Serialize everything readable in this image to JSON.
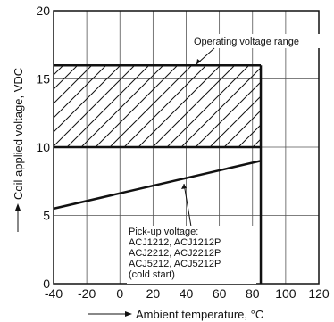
{
  "chart_data": {
    "type": "line",
    "xlabel": "Ambient temperature, °C",
    "ylabel": "Coil applied voltage, VDC",
    "xlim": [
      -40,
      120
    ],
    "ylim": [
      0,
      20
    ],
    "x_ticks": [
      -40,
      -20,
      0,
      20,
      40,
      60,
      80,
      100,
      120
    ],
    "y_ticks": [
      0,
      5,
      10,
      15,
      20
    ],
    "x_tick_labels": [
      "-40",
      "-20",
      "0",
      "20",
      "40",
      "60",
      "80",
      "100",
      "120"
    ],
    "y_tick_labels": [
      "0",
      "5",
      "10",
      "15",
      "20"
    ],
    "grid": true,
    "operating_range": {
      "label": "Operating voltage range",
      "x": [
        -40,
        85
      ],
      "y": [
        10,
        16
      ]
    },
    "pickup_line": {
      "x": [
        -40,
        85
      ],
      "y": [
        5.5,
        9
      ],
      "label_lines": [
        "Pick-up voltage:",
        "ACJ1212, ACJ1212P",
        "ACJ2212, ACJ2212P",
        "ACJ5212, ACJ5212P",
        "(cold start)"
      ]
    },
    "max_temp_x": 85
  }
}
